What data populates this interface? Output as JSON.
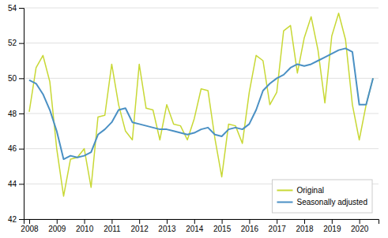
{
  "chart_data": {
    "type": "line",
    "x": [
      2008.0,
      2008.25,
      2008.5,
      2008.75,
      2009.0,
      2009.25,
      2009.5,
      2009.75,
      2010.0,
      2010.25,
      2010.5,
      2010.75,
      2011.0,
      2011.25,
      2011.5,
      2011.75,
      2012.0,
      2012.25,
      2012.5,
      2012.75,
      2013.0,
      2013.25,
      2013.5,
      2013.75,
      2014.0,
      2014.25,
      2014.5,
      2014.75,
      2015.0,
      2015.25,
      2015.5,
      2015.75,
      2016.0,
      2016.25,
      2016.5,
      2016.75,
      2017.0,
      2017.25,
      2017.5,
      2017.75,
      2018.0,
      2018.25,
      2018.5,
      2018.75,
      2019.0,
      2019.25,
      2019.5,
      2019.75,
      2020.0,
      2020.25,
      2020.5
    ],
    "series": [
      {
        "name": "Original",
        "color": "#c8d835",
        "values": [
          48.1,
          50.6,
          51.3,
          49.8,
          46.0,
          43.3,
          45.4,
          45.5,
          46.0,
          43.8,
          47.8,
          47.9,
          50.8,
          48.5,
          47.0,
          46.5,
          50.8,
          48.3,
          48.2,
          46.5,
          48.5,
          47.4,
          47.3,
          46.5,
          47.7,
          49.4,
          49.3,
          46.6,
          44.4,
          47.4,
          47.3,
          46.3,
          49.2,
          51.3,
          51.0,
          48.5,
          49.2,
          52.7,
          53.0,
          50.3,
          52.3,
          53.5,
          51.6,
          48.6,
          52.4,
          53.7,
          52.2,
          48.5,
          46.5,
          48.5,
          50.0
        ]
      },
      {
        "name": "Seasonally adjusted",
        "color": "#4a90c4",
        "values": [
          49.9,
          49.7,
          49.1,
          48.2,
          47.0,
          45.4,
          45.6,
          45.5,
          45.6,
          45.8,
          46.8,
          47.1,
          47.5,
          48.2,
          48.3,
          47.5,
          47.4,
          47.3,
          47.2,
          47.1,
          47.1,
          47.0,
          46.9,
          46.8,
          46.9,
          47.1,
          47.2,
          46.8,
          46.7,
          47.1,
          47.2,
          47.1,
          47.4,
          48.2,
          49.3,
          49.7,
          50.0,
          50.2,
          50.6,
          50.8,
          50.7,
          50.8,
          51.0,
          51.2,
          51.4,
          51.6,
          51.7,
          51.5,
          48.5,
          48.5,
          50.0
        ]
      }
    ],
    "xlim": [
      2007.8,
      2020.7
    ],
    "ylim": [
      42,
      54
    ],
    "xticks": [
      2008,
      2009,
      2010,
      2011,
      2012,
      2013,
      2014,
      2015,
      2016,
      2017,
      2018,
      2019,
      2020
    ],
    "yticks": [
      42,
      44,
      46,
      48,
      50,
      52,
      54
    ],
    "grid": true,
    "legend": "lower right"
  }
}
